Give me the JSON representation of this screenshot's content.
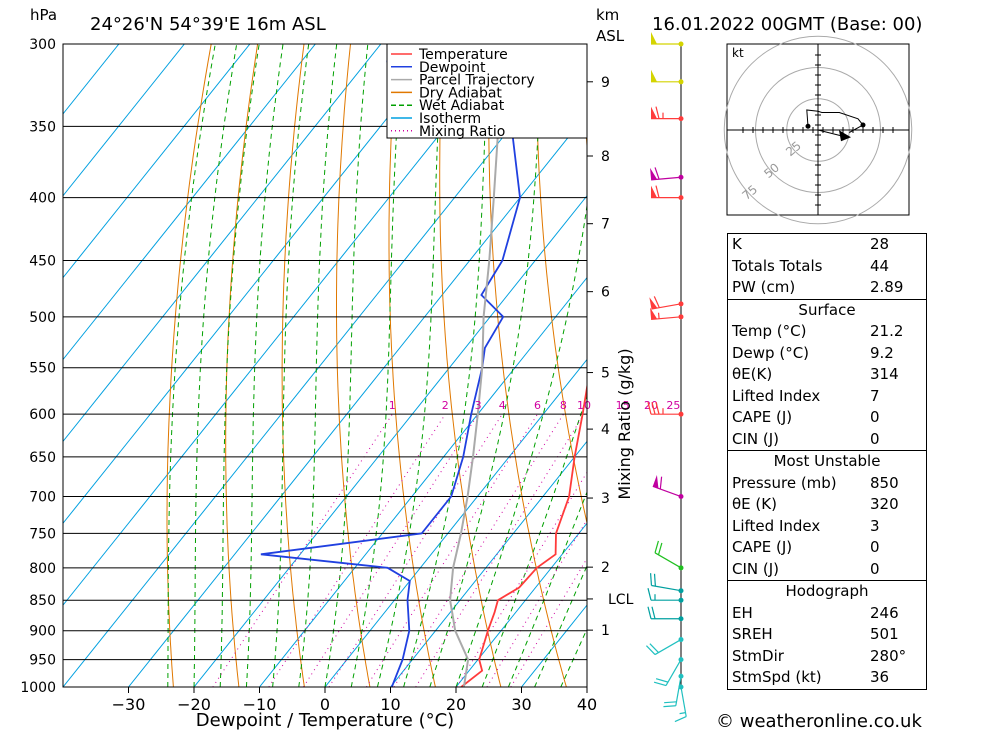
{
  "header": {
    "pressure_unit": "hPa",
    "location": "24°26'N  54°39'E  16m  ASL",
    "height_unit_km": "km",
    "height_unit_asl": "ASL",
    "datetime": "16.01.2022  00GMT  (Base: 00)"
  },
  "footer": {
    "credit": "© weatheronline.co.uk"
  },
  "colors": {
    "temperature": "#ff3b3b",
    "dewpoint": "#2040e0",
    "parcel": "#aaaaaa",
    "dry_adiabat": "#e07800",
    "wet_adiabat": "#00a000",
    "isotherm": "#00a0e0",
    "mixing_ratio": "#d000a0"
  },
  "chart_data": {
    "type": "line",
    "title": "24°26'N  54°39'E  16m  ASL",
    "xlabel": "Dewpoint / Temperature (°C)",
    "ylabel": "hPa",
    "y2label": "Mixing Ratio (g/kg)",
    "xlim": [
      -40,
      40
    ],
    "ylim": [
      1000,
      300
    ],
    "y_scale": "log",
    "x_ticks": [
      -30,
      -20,
      -10,
      0,
      10,
      20,
      30,
      40
    ],
    "x_tick_labels": [
      "−30",
      "−20",
      "−10",
      "0",
      "10",
      "20",
      "30",
      "40"
    ],
    "pressure_levels": [
      300,
      350,
      400,
      450,
      500,
      550,
      600,
      650,
      700,
      750,
      800,
      850,
      900,
      950,
      1000
    ],
    "height_ticks_km": [
      {
        "label": "9",
        "p": 322
      },
      {
        "label": "8",
        "p": 370
      },
      {
        "label": "7",
        "p": 420
      },
      {
        "label": "6",
        "p": 477
      },
      {
        "label": "5",
        "p": 555
      },
      {
        "label": "4",
        "p": 617
      },
      {
        "label": "3",
        "p": 702
      },
      {
        "label": "2",
        "p": 799
      },
      {
        "label": "LCL",
        "p": 848
      },
      {
        "label": "1",
        "p": 899
      }
    ],
    "mixing_ratio_labels": [
      "1",
      "2",
      "3",
      "4",
      "6",
      "8",
      "10",
      "15",
      "20",
      "25"
    ],
    "legend": [
      "Temperature",
      "Dewpoint",
      "Parcel Trajectory",
      "Dry Adiabat",
      "Wet Adiabat",
      "Isotherm",
      "Mixing Ratio"
    ],
    "legend_position": "top-right",
    "series": [
      {
        "name": "Temperature",
        "points": [
          [
            1000,
            20.8
          ],
          [
            970,
            22
          ],
          [
            950,
            20.2
          ],
          [
            900,
            18
          ],
          [
            870,
            16.8
          ],
          [
            850,
            15.8
          ],
          [
            830,
            17.5
          ],
          [
            800,
            17.8
          ],
          [
            780,
            19
          ],
          [
            750,
            16.5
          ],
          [
            700,
            14
          ],
          [
            650,
            10
          ],
          [
            600,
            6.0
          ],
          [
            550,
            1.5
          ],
          [
            530,
            0.5
          ],
          [
            500,
            -3.0
          ],
          [
            480,
            -5.5
          ],
          [
            450,
            -9
          ],
          [
            400,
            -16
          ],
          [
            350,
            -27
          ],
          [
            330,
            -32
          ],
          [
            320,
            -33
          ],
          [
            315,
            -28
          ],
          [
            308,
            -24
          ],
          [
            300,
            -25
          ]
        ]
      },
      {
        "name": "Dewpoint",
        "points": [
          [
            1000,
            10.2
          ],
          [
            950,
            8.5
          ],
          [
            900,
            6
          ],
          [
            850,
            2
          ],
          [
            820,
            0
          ],
          [
            800,
            -5
          ],
          [
            780,
            -26
          ],
          [
            750,
            -4
          ],
          [
            700,
            -4
          ],
          [
            650,
            -7
          ],
          [
            600,
            -11
          ],
          [
            550,
            -15
          ],
          [
            530,
            -17
          ],
          [
            500,
            -18
          ],
          [
            480,
            -24
          ],
          [
            450,
            -25
          ],
          [
            400,
            -30
          ],
          [
            350,
            -40
          ],
          [
            330,
            -41
          ],
          [
            320,
            -43
          ],
          [
            310,
            -67
          ],
          [
            305,
            -60
          ],
          [
            300,
            -59
          ]
        ]
      },
      {
        "name": "Parcel Trajectory",
        "points": [
          [
            1000,
            21.2
          ],
          [
            950,
            18.5
          ],
          [
            900,
            13.0
          ],
          [
            850,
            8.5
          ],
          [
            800,
            5.0
          ],
          [
            750,
            2.0
          ],
          [
            700,
            -1.5
          ],
          [
            650,
            -5.5
          ],
          [
            600,
            -10
          ],
          [
            550,
            -15
          ],
          [
            500,
            -21
          ],
          [
            450,
            -27
          ],
          [
            400,
            -34
          ],
          [
            350,
            -42
          ],
          [
            300,
            -50
          ]
        ]
      }
    ],
    "wind_barbs": [
      {
        "p": 300,
        "dir": 270,
        "speed": 50
      },
      {
        "p": 322,
        "dir": 270,
        "speed": 50
      },
      {
        "p": 345,
        "dir": 270,
        "speed": 65
      },
      {
        "p": 385,
        "dir": 265,
        "speed": 60
      },
      {
        "p": 400,
        "dir": 270,
        "speed": 60
      },
      {
        "p": 488,
        "dir": 260,
        "speed": 60
      },
      {
        "p": 500,
        "dir": 265,
        "speed": 55
      },
      {
        "p": 600,
        "dir": 270,
        "speed": 35
      },
      {
        "p": 700,
        "dir": 290,
        "speed": 60
      },
      {
        "p": 800,
        "dir": 300,
        "speed": 20
      },
      {
        "p": 835,
        "dir": 280,
        "speed": 20
      },
      {
        "p": 850,
        "dir": 270,
        "speed": 15
      },
      {
        "p": 880,
        "dir": 270,
        "speed": 20
      },
      {
        "p": 915,
        "dir": 240,
        "speed": 20
      },
      {
        "p": 950,
        "dir": 210,
        "speed": 20
      },
      {
        "p": 980,
        "dir": 190,
        "speed": 20
      },
      {
        "p": 1000,
        "dir": 170,
        "speed": 15
      }
    ],
    "hodograph": {
      "unit": "kt",
      "ring_labels": [
        "25",
        "50",
        "75"
      ],
      "points": [
        [
          -8,
          3
        ],
        [
          -9,
          16
        ],
        [
          0,
          15
        ],
        [
          3,
          14
        ],
        [
          17,
          14
        ],
        [
          32,
          9
        ],
        [
          36,
          4
        ],
        [
          25,
          -2
        ]
      ],
      "storm_motion": [
        20,
        -5
      ]
    }
  },
  "stats": {
    "indices": [
      {
        "label": "K",
        "value": "28"
      },
      {
        "label": "Totals Totals",
        "value": "44"
      },
      {
        "label": "PW (cm)",
        "value": "2.89"
      }
    ],
    "surface": {
      "title": "Surface",
      "rows": [
        {
          "label": "Temp (°C)",
          "value": "21.2"
        },
        {
          "label": "Dewp (°C)",
          "value": "9.2"
        },
        {
          "label": "θE(K)",
          "value": "314"
        },
        {
          "label": "Lifted Index",
          "value": "7"
        },
        {
          "label": "CAPE (J)",
          "value": "0"
        },
        {
          "label": "CIN (J)",
          "value": "0"
        }
      ]
    },
    "most_unstable": {
      "title": "Most Unstable",
      "rows": [
        {
          "label": "Pressure (mb)",
          "value": "850"
        },
        {
          "label": "θE (K)",
          "value": "320"
        },
        {
          "label": "Lifted Index",
          "value": "3"
        },
        {
          "label": "CAPE (J)",
          "value": "0"
        },
        {
          "label": "CIN (J)",
          "value": "0"
        }
      ]
    },
    "hodograph": {
      "title": "Hodograph",
      "rows": [
        {
          "label": "EH",
          "value": "246"
        },
        {
          "label": "SREH",
          "value": "501"
        },
        {
          "label": "StmDir",
          "value": "280°"
        },
        {
          "label": "StmSpd (kt)",
          "value": "36"
        }
      ]
    }
  }
}
